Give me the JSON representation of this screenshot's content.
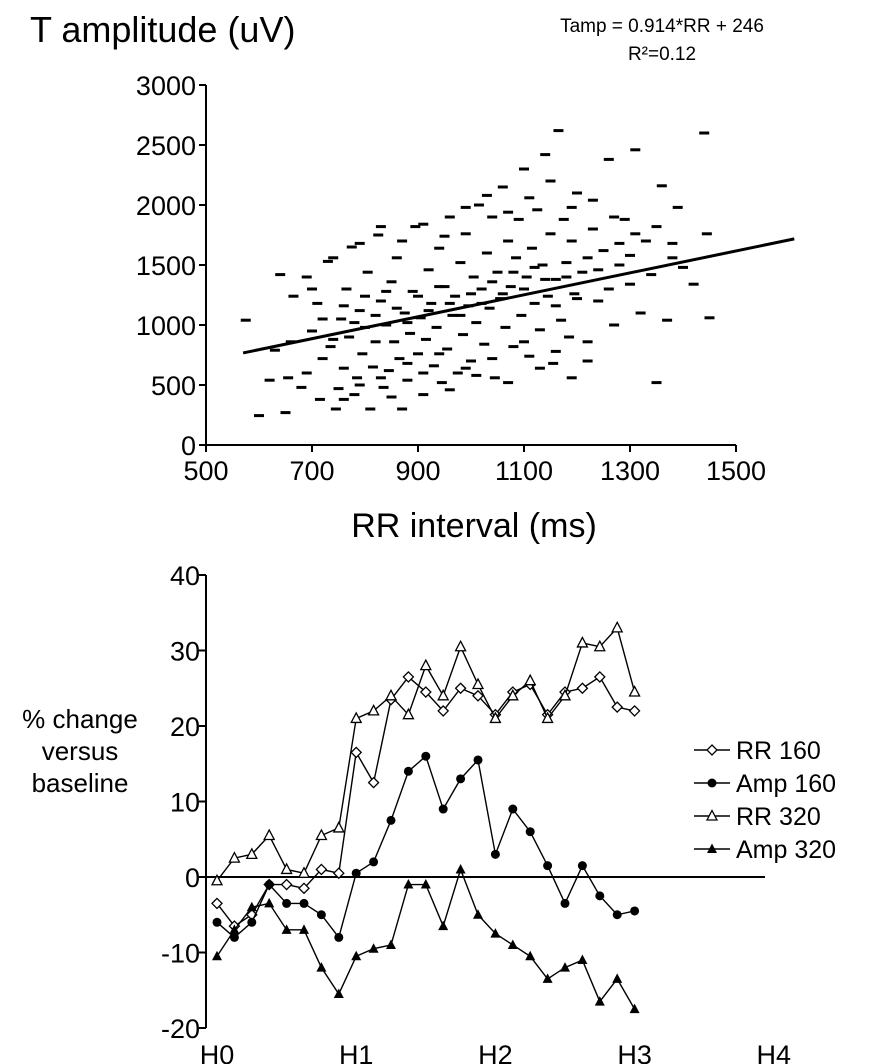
{
  "chart_data": [
    {
      "type": "scatter",
      "title": "T amplitude (uV)",
      "annotation_line1": "Tamp = 0.914*RR + 246",
      "annotation_line2": "R²=0.12",
      "xlabel": "RR interval (ms)",
      "ylabel": "T amplitude (uV)",
      "xlim": [
        500,
        1500
      ],
      "ylim": [
        0,
        3000
      ],
      "x_ticks": [
        "500",
        "700",
        "900",
        "1100",
        "1300",
        "1500"
      ],
      "y_ticks": [
        "0",
        "500",
        "1000",
        "1500",
        "2000",
        "2500",
        "3000"
      ],
      "marker": "dash",
      "fit_line": {
        "slope": 0.914,
        "intercept": 246,
        "x_range": [
          570,
          1610
        ]
      },
      "points": [
        [
          575,
          1040
        ],
        [
          600,
          245
        ],
        [
          620,
          540
        ],
        [
          630,
          790
        ],
        [
          640,
          1420
        ],
        [
          650,
          270
        ],
        [
          655,
          560
        ],
        [
          660,
          860
        ],
        [
          665,
          1240
        ],
        [
          680,
          480
        ],
        [
          690,
          600
        ],
        [
          700,
          950
        ],
        [
          710,
          1180
        ],
        [
          715,
          380
        ],
        [
          720,
          720
        ],
        [
          730,
          1530
        ],
        [
          735,
          820
        ],
        [
          745,
          300
        ],
        [
          750,
          470
        ],
        [
          755,
          1050
        ],
        [
          760,
          640
        ],
        [
          765,
          1300
        ],
        [
          770,
          900
        ],
        [
          775,
          1650
        ],
        [
          780,
          420
        ],
        [
          785,
          560
        ],
        [
          790,
          1120
        ],
        [
          795,
          760
        ],
        [
          800,
          980
        ],
        [
          805,
          1440
        ],
        [
          810,
          300
        ],
        [
          815,
          650
        ],
        [
          820,
          860
        ],
        [
          825,
          1750
        ],
        [
          830,
          1200
        ],
        [
          835,
          480
        ],
        [
          840,
          1000
        ],
        [
          845,
          620
        ],
        [
          850,
          1360
        ],
        [
          855,
          860
        ],
        [
          860,
          1560
        ],
        [
          865,
          720
        ],
        [
          870,
          300
        ],
        [
          875,
          1100
        ],
        [
          880,
          540
        ],
        [
          885,
          930
        ],
        [
          890,
          1280
        ],
        [
          895,
          1820
        ],
        [
          900,
          760
        ],
        [
          905,
          1060
        ],
        [
          910,
          420
        ],
        [
          915,
          880
        ],
        [
          920,
          1460
        ],
        [
          925,
          1180
        ],
        [
          930,
          660
        ],
        [
          935,
          980
        ],
        [
          940,
          1640
        ],
        [
          945,
          520
        ],
        [
          950,
          1320
        ],
        [
          955,
          800
        ],
        [
          960,
          1900
        ],
        [
          965,
          1080
        ],
        [
          970,
          1240
        ],
        [
          975,
          600
        ],
        [
          980,
          1520
        ],
        [
          985,
          920
        ],
        [
          990,
          1760
        ],
        [
          995,
          1160
        ],
        [
          1000,
          700
        ],
        [
          1005,
          1400
        ],
        [
          1010,
          1020
        ],
        [
          1015,
          2000
        ],
        [
          1020,
          1300
        ],
        [
          1025,
          840
        ],
        [
          1030,
          1600
        ],
        [
          1035,
          1140
        ],
        [
          1040,
          1900
        ],
        [
          1045,
          560
        ],
        [
          1050,
          1440
        ],
        [
          1055,
          1220
        ],
        [
          1060,
          2150
        ],
        [
          1065,
          980
        ],
        [
          1070,
          1700
        ],
        [
          1075,
          1320
        ],
        [
          1080,
          820
        ],
        [
          1085,
          1560
        ],
        [
          1090,
          1880
        ],
        [
          1095,
          1080
        ],
        [
          1100,
          2300
        ],
        [
          1105,
          1400
        ],
        [
          1110,
          740
        ],
        [
          1115,
          1640
        ],
        [
          1120,
          1180
        ],
        [
          1125,
          1960
        ],
        [
          1130,
          960
        ],
        [
          1135,
          1500
        ],
        [
          1140,
          2420
        ],
        [
          1145,
          1240
        ],
        [
          1150,
          1760
        ],
        [
          1155,
          680
        ],
        [
          1160,
          1380
        ],
        [
          1165,
          2620
        ],
        [
          1170,
          1040
        ],
        [
          1175,
          1880
        ],
        [
          1180,
          1520
        ],
        [
          1185,
          900
        ],
        [
          1190,
          1700
        ],
        [
          1195,
          1260
        ],
        [
          1200,
          2100
        ],
        [
          1210,
          1440
        ],
        [
          1220,
          860
        ],
        [
          1230,
          1800
        ],
        [
          1240,
          1200
        ],
        [
          1250,
          1620
        ],
        [
          1260,
          2380
        ],
        [
          1270,
          1000
        ],
        [
          1280,
          1500
        ],
        [
          1290,
          1880
        ],
        [
          1300,
          1340
        ],
        [
          1310,
          2460
        ],
        [
          1320,
          1100
        ],
        [
          1330,
          1700
        ],
        [
          1340,
          1420
        ],
        [
          1350,
          520
        ],
        [
          1360,
          2160
        ],
        [
          1370,
          1040
        ],
        [
          1380,
          1560
        ],
        [
          1390,
          1980
        ],
        [
          1400,
          1480
        ],
        [
          1420,
          1340
        ],
        [
          1440,
          2600
        ],
        [
          1445,
          1760
        ],
        [
          1450,
          1060
        ],
        [
          700,
          1300
        ],
        [
          720,
          1050
        ],
        [
          740,
          880
        ],
        [
          760,
          1160
        ],
        [
          780,
          1020
        ],
        [
          800,
          1240
        ],
        [
          820,
          1080
        ],
        [
          840,
          1280
        ],
        [
          860,
          1140
        ],
        [
          880,
          1020
        ],
        [
          900,
          1240
        ],
        [
          920,
          1120
        ],
        [
          940,
          1320
        ],
        [
          960,
          1180
        ],
        [
          980,
          1080
        ],
        [
          1000,
          1260
        ],
        [
          1020,
          1180
        ],
        [
          1040,
          1360
        ],
        [
          1060,
          1260
        ],
        [
          1080,
          1440
        ],
        [
          1100,
          1300
        ],
        [
          1120,
          1480
        ],
        [
          1140,
          1380
        ],
        [
          1160,
          1160
        ],
        [
          1180,
          1400
        ],
        [
          1200,
          1220
        ],
        [
          1220,
          1560
        ],
        [
          1240,
          1460
        ],
        [
          1260,
          1300
        ],
        [
          1280,
          1680
        ],
        [
          1300,
          1580
        ],
        [
          760,
          380
        ],
        [
          790,
          500
        ],
        [
          830,
          560
        ],
        [
          850,
          400
        ],
        [
          880,
          680
        ],
        [
          910,
          600
        ],
        [
          940,
          760
        ],
        [
          960,
          460
        ],
        [
          990,
          640
        ],
        [
          1010,
          580
        ],
        [
          1040,
          720
        ],
        [
          1070,
          520
        ],
        [
          1100,
          860
        ],
        [
          1130,
          640
        ],
        [
          1160,
          780
        ],
        [
          1190,
          560
        ],
        [
          1220,
          700
        ],
        [
          690,
          1400
        ],
        [
          740,
          1560
        ],
        [
          790,
          1680
        ],
        [
          830,
          1820
        ],
        [
          870,
          1700
        ],
        [
          910,
          1840
        ],
        [
          950,
          1740
        ],
        [
          990,
          1980
        ],
        [
          1030,
          2080
        ],
        [
          1070,
          1940
        ],
        [
          1110,
          2060
        ],
        [
          1150,
          2200
        ],
        [
          1190,
          1980
        ],
        [
          1230,
          2040
        ],
        [
          1270,
          1900
        ],
        [
          1310,
          1760
        ],
        [
          1350,
          1820
        ],
        [
          1380,
          1680
        ]
      ]
    },
    {
      "type": "line",
      "ylabel": "% change versus baseline",
      "ylabel_line1": "% change",
      "ylabel_line2": "versus",
      "ylabel_line3": "baseline",
      "ylim": [
        -20,
        40
      ],
      "y_ticks": [
        "-20",
        "-10",
        "0",
        "10",
        "20",
        "30",
        "40"
      ],
      "x_ticks": [
        "H0",
        "H1",
        "H2",
        "H3",
        "H4"
      ],
      "x_tick_positions": [
        0,
        8,
        16,
        24,
        32
      ],
      "series": [
        {
          "name": "RR 160",
          "marker": "diamond-open",
          "values": [
            -3.5,
            -6.5,
            -5,
            -1,
            -1,
            -1.5,
            1,
            0.5,
            16.5,
            12.5,
            23.5,
            26.5,
            24.5,
            22,
            25,
            24,
            21.5,
            24.5,
            25.5,
            21.5,
            24.5,
            25,
            26.5,
            22.5,
            22
          ]
        },
        {
          "name": "Amp 160",
          "marker": "circle-filled",
          "values": [
            -6,
            -8,
            -6,
            -1,
            -3.5,
            -3.5,
            -5,
            -8,
            0.5,
            2,
            7.5,
            14,
            16,
            9,
            13,
            15.5,
            3,
            9,
            6,
            1.5,
            -3.5,
            1.5,
            -2.5,
            -5,
            -4.5
          ]
        },
        {
          "name": "RR 320",
          "marker": "triangle-open",
          "values": [
            -0.5,
            2.5,
            3,
            5.5,
            1,
            0.5,
            5.5,
            6.5,
            21,
            22,
            24,
            21.5,
            28,
            24,
            30.5,
            25.5,
            21,
            24,
            26,
            21,
            24,
            31,
            30.5,
            33,
            24.5
          ]
        },
        {
          "name": "Amp 320",
          "marker": "triangle-filled",
          "values": [
            -10.5,
            -7,
            -4,
            -3.5,
            -7,
            -7,
            -12,
            -15.5,
            -10.5,
            -9.5,
            -9,
            -1,
            -1,
            -6.5,
            1,
            -5,
            -7.5,
            -9,
            -10.5,
            -13.5,
            -12,
            -11,
            -16.5,
            -13.5,
            -17.5
          ]
        }
      ],
      "legend_position": "right"
    }
  ]
}
